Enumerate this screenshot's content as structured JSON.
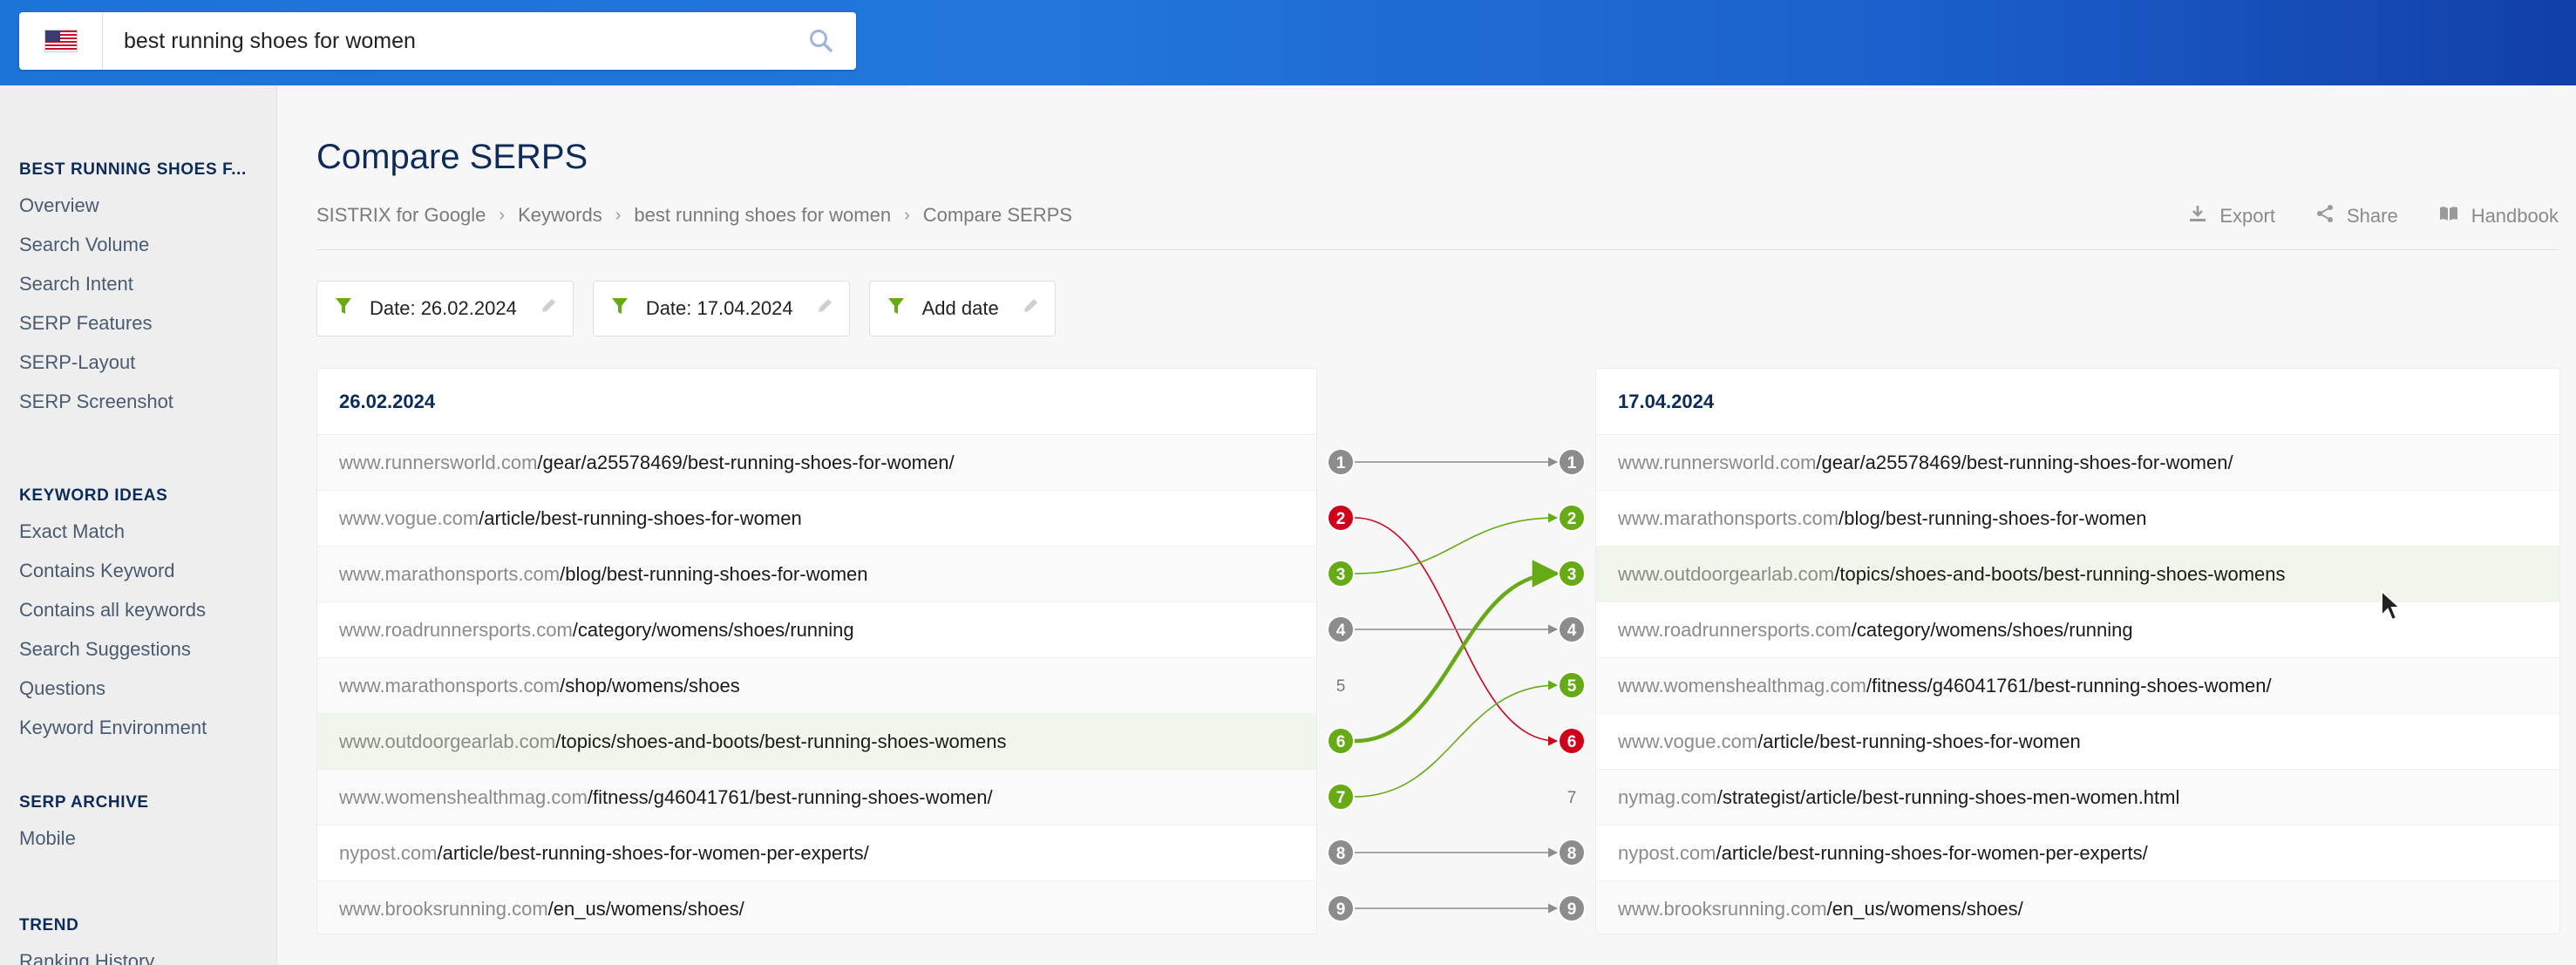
{
  "search": {
    "value": "best running shoes for women",
    "placeholder": ""
  },
  "sidebar": {
    "sections": [
      {
        "heading": "BEST RUNNING SHOES F...",
        "items": [
          "Overview",
          "Search Volume",
          "Search Intent",
          "SERP Features",
          "SERP-Layout",
          "SERP Screenshot"
        ]
      },
      {
        "heading": "KEYWORD IDEAS",
        "items": [
          "Exact Match",
          "Contains Keyword",
          "Contains all keywords",
          "Search Suggestions",
          "Questions",
          "Keyword Environment"
        ]
      },
      {
        "heading": "SERP ARCHIVE",
        "items": [
          "Mobile"
        ]
      },
      {
        "heading": "TREND",
        "items": [
          "Ranking History"
        ]
      }
    ]
  },
  "page": {
    "title": "Compare SERPS"
  },
  "breadcrumb": [
    "SISTRIX for Google",
    "Keywords",
    "best running shoes for women",
    "Compare SERPS"
  ],
  "actions": [
    {
      "label": "Export",
      "icon": "download-icon"
    },
    {
      "label": "Share",
      "icon": "share-icon"
    },
    {
      "label": "Handbook",
      "icon": "book-icon"
    }
  ],
  "filters": [
    {
      "label": "Date: 26.02.2024"
    },
    {
      "label": "Date: 17.04.2024"
    },
    {
      "label": "Add date"
    }
  ],
  "colors": {
    "green": "#66aa16",
    "red": "#d0021b",
    "gray": "#8c8c8c",
    "navy": "#0d2b5a"
  },
  "left": {
    "date": "26.02.2024",
    "rows": [
      {
        "domain": "www.runnersworld.com",
        "path": "/gear/a25578469/best-running-shoes-for-women/"
      },
      {
        "domain": "www.vogue.com",
        "path": "/article/best-running-shoes-for-women"
      },
      {
        "domain": "www.marathonsports.com",
        "path": "/blog/best-running-shoes-for-women"
      },
      {
        "domain": "www.roadrunnersports.com",
        "path": "/category/womens/shoes/running"
      },
      {
        "domain": "www.marathonsports.com",
        "path": "/shop/womens/shoes"
      },
      {
        "domain": "www.outdoorgearlab.com",
        "path": "/topics/shoes-and-boots/best-running-shoes-womens"
      },
      {
        "domain": "www.womenshealthmag.com",
        "path": "/fitness/g46041761/best-running-shoes-women/"
      },
      {
        "domain": "nypost.com",
        "path": "/article/best-running-shoes-for-women-per-experts/"
      },
      {
        "domain": "www.brooksrunning.com",
        "path": "/en_us/womens/shoes/"
      }
    ]
  },
  "right": {
    "date": "17.04.2024",
    "rows": [
      {
        "domain": "www.runnersworld.com",
        "path": "/gear/a25578469/best-running-shoes-for-women/"
      },
      {
        "domain": "www.marathonsports.com",
        "path": "/blog/best-running-shoes-for-women"
      },
      {
        "domain": "www.outdoorgearlab.com",
        "path": "/topics/shoes-and-boots/best-running-shoes-womens"
      },
      {
        "domain": "www.roadrunnersports.com",
        "path": "/category/womens/shoes/running"
      },
      {
        "domain": "www.womenshealthmag.com",
        "path": "/fitness/g46041761/best-running-shoes-women/"
      },
      {
        "domain": "www.vogue.com",
        "path": "/article/best-running-shoes-for-women"
      },
      {
        "domain": "nymag.com",
        "path": "/strategist/article/best-running-shoes-men-women.html"
      },
      {
        "domain": "nypost.com",
        "path": "/article/best-running-shoes-for-women-per-experts/"
      },
      {
        "domain": "www.brooksrunning.com",
        "path": "/en_us/womens/shoes/"
      }
    ]
  },
  "connections": [
    {
      "from": 1,
      "to": 1,
      "status": "same"
    },
    {
      "from": 2,
      "to": 6,
      "status": "down"
    },
    {
      "from": 3,
      "to": 2,
      "status": "up"
    },
    {
      "from": 4,
      "to": 4,
      "status": "same"
    },
    {
      "from": 5,
      "to": null,
      "status": "dropped"
    },
    {
      "from": 6,
      "to": 3,
      "status": "up",
      "emphasis": true
    },
    {
      "from": 7,
      "to": 5,
      "status": "up"
    },
    {
      "from": null,
      "to": 7,
      "status": "new"
    },
    {
      "from": 8,
      "to": 8,
      "status": "same"
    },
    {
      "from": 9,
      "to": 9,
      "status": "same"
    }
  ],
  "highlight": {
    "left_row": 6,
    "right_row": 3
  }
}
